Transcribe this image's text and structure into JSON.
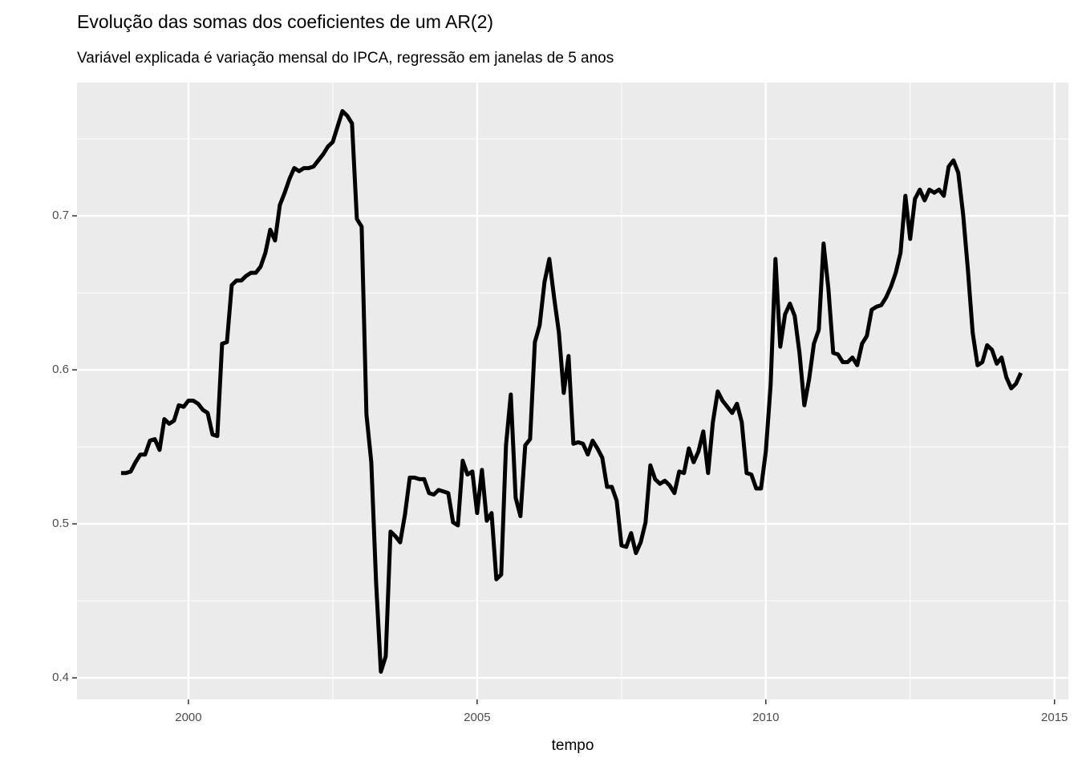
{
  "chart_data": {
    "type": "line",
    "title": "Evolução das somas dos coeficientes de um AR(2)",
    "subtitle": "Variável explicada é variação mensal do IPCA, regressão em janelas de 5 anos",
    "x_label": "tempo",
    "xlim": [
      1998.07,
      2015.24
    ],
    "xticks": [
      2000,
      2005,
      2010,
      2015
    ],
    "ylim": [
      0.386,
      0.7865
    ],
    "yticks": [
      0.4,
      0.5,
      0.6,
      0.7
    ],
    "grid": true,
    "series": [
      {
        "color": "#000000",
        "x": [
          1998.833,
          1998.917,
          1999,
          1999.083,
          1999.167,
          1999.25,
          1999.333,
          1999.417,
          1999.5,
          1999.583,
          1999.667,
          1999.75,
          1999.833,
          1999.917,
          2000,
          2000.083,
          2000.167,
          2000.25,
          2000.333,
          2000.417,
          2000.5,
          2000.583,
          2000.667,
          2000.75,
          2000.833,
          2000.917,
          2001,
          2001.083,
          2001.167,
          2001.25,
          2001.333,
          2001.417,
          2001.5,
          2001.583,
          2001.667,
          2001.75,
          2001.833,
          2001.917,
          2002,
          2002.083,
          2002.167,
          2002.25,
          2002.333,
          2002.417,
          2002.5,
          2002.583,
          2002.667,
          2002.75,
          2002.833,
          2002.917,
          2003,
          2003.083,
          2003.167,
          2003.25,
          2003.333,
          2003.417,
          2003.5,
          2003.583,
          2003.667,
          2003.75,
          2003.833,
          2003.917,
          2004,
          2004.083,
          2004.167,
          2004.25,
          2004.333,
          2004.417,
          2004.5,
          2004.583,
          2004.667,
          2004.75,
          2004.833,
          2004.917,
          2005,
          2005.083,
          2005.167,
          2005.25,
          2005.333,
          2005.417,
          2005.5,
          2005.583,
          2005.667,
          2005.75,
          2005.833,
          2005.917,
          2006,
          2006.083,
          2006.167,
          2006.25,
          2006.333,
          2006.417,
          2006.5,
          2006.583,
          2006.667,
          2006.75,
          2006.833,
          2006.917,
          2007,
          2007.083,
          2007.167,
          2007.25,
          2007.333,
          2007.417,
          2007.5,
          2007.583,
          2007.667,
          2007.75,
          2007.833,
          2007.917,
          2008,
          2008.083,
          2008.167,
          2008.25,
          2008.333,
          2008.417,
          2008.5,
          2008.583,
          2008.667,
          2008.75,
          2008.833,
          2008.917,
          2009,
          2009.083,
          2009.167,
          2009.25,
          2009.333,
          2009.417,
          2009.5,
          2009.583,
          2009.667,
          2009.75,
          2009.833,
          2009.917,
          2010,
          2010.083,
          2010.167,
          2010.25,
          2010.333,
          2010.417,
          2010.5,
          2010.583,
          2010.667,
          2010.75,
          2010.833,
          2010.917,
          2011,
          2011.083,
          2011.167,
          2011.25,
          2011.333,
          2011.417,
          2011.5,
          2011.583,
          2011.667,
          2011.75,
          2011.833,
          2011.917,
          2012,
          2012.083,
          2012.167,
          2012.25,
          2012.333,
          2012.417,
          2012.5,
          2012.583,
          2012.667,
          2012.75,
          2012.833,
          2012.917,
          2013,
          2013.083,
          2013.167,
          2013.25,
          2013.333,
          2013.417,
          2013.5,
          2013.583,
          2013.667,
          2013.75,
          2013.833,
          2013.917,
          2014,
          2014.083,
          2014.167,
          2014.25,
          2014.333,
          2014.417
        ],
        "values": [
          0.533,
          0.533,
          0.534,
          0.54,
          0.545,
          0.545,
          0.554,
          0.555,
          0.548,
          0.568,
          0.565,
          0.567,
          0.577,
          0.576,
          0.58,
          0.58,
          0.578,
          0.574,
          0.572,
          0.558,
          0.557,
          0.617,
          0.618,
          0.655,
          0.658,
          0.658,
          0.661,
          0.663,
          0.663,
          0.667,
          0.676,
          0.691,
          0.684,
          0.707,
          0.715,
          0.724,
          0.731,
          0.729,
          0.731,
          0.731,
          0.732,
          0.736,
          0.74,
          0.745,
          0.748,
          0.758,
          0.768,
          0.765,
          0.76,
          0.698,
          0.693,
          0.571,
          0.54,
          0.462,
          0.404,
          0.414,
          0.495,
          0.492,
          0.488,
          0.506,
          0.53,
          0.53,
          0.529,
          0.529,
          0.52,
          0.519,
          0.522,
          0.521,
          0.52,
          0.501,
          0.499,
          0.541,
          0.532,
          0.534,
          0.507,
          0.535,
          0.502,
          0.507,
          0.464,
          0.467,
          0.551,
          0.584,
          0.517,
          0.505,
          0.551,
          0.555,
          0.618,
          0.629,
          0.657,
          0.672,
          0.647,
          0.624,
          0.585,
          0.609,
          0.552,
          0.553,
          0.552,
          0.545,
          0.554,
          0.549,
          0.543,
          0.524,
          0.524,
          0.515,
          0.486,
          0.485,
          0.494,
          0.481,
          0.488,
          0.501,
          0.538,
          0.529,
          0.526,
          0.528,
          0.525,
          0.52,
          0.534,
          0.533,
          0.549,
          0.54,
          0.547,
          0.56,
          0.533,
          0.566,
          0.586,
          0.58,
          0.576,
          0.572,
          0.578,
          0.566,
          0.533,
          0.532,
          0.523,
          0.523,
          0.547,
          0.59,
          0.672,
          0.615,
          0.636,
          0.643,
          0.635,
          0.611,
          0.577,
          0.594,
          0.617,
          0.626,
          0.682,
          0.653,
          0.611,
          0.61,
          0.605,
          0.605,
          0.608,
          0.603,
          0.617,
          0.622,
          0.639,
          0.641,
          0.642,
          0.647,
          0.654,
          0.663,
          0.676,
          0.713,
          0.685,
          0.711,
          0.717,
          0.71,
          0.717,
          0.715,
          0.717,
          0.713,
          0.732,
          0.736,
          0.728,
          0.701,
          0.665,
          0.624,
          0.603,
          0.605,
          0.616,
          0.613,
          0.604,
          0.608,
          0.595,
          0.588,
          0.591,
          0.598
        ]
      }
    ]
  }
}
